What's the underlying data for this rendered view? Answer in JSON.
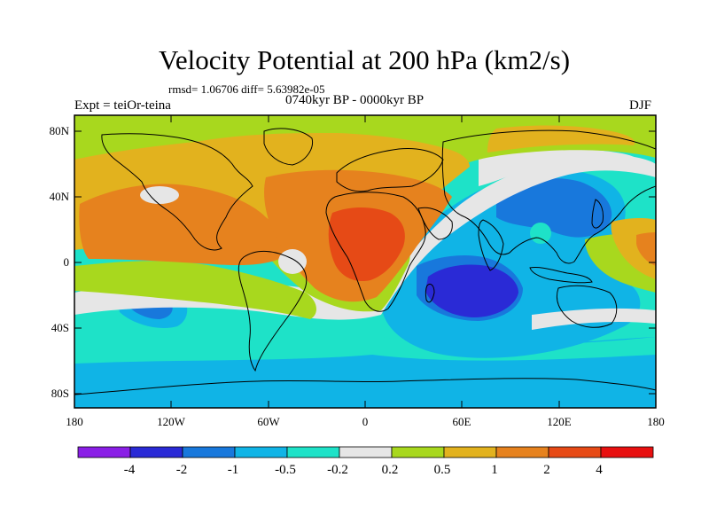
{
  "title": "Velocity Potential at 200 hPa (km2/s)",
  "stats": "rmsd= 1.06706 diff= 5.63982e-05",
  "experiment": "Expt = teiOr-teina",
  "period": "0740kyr BP - 0000kyr BP",
  "season": "DJF",
  "lat_ticks": [
    "80N",
    "40N",
    "0",
    "40S",
    "80S"
  ],
  "lon_ticks": [
    "180",
    "120W",
    "60W",
    "0",
    "60E",
    "120E",
    "180"
  ],
  "colorbar": {
    "colors": [
      "#8a1fe6",
      "#2a2ad6",
      "#1878dc",
      "#10b4e6",
      "#1ee2c8",
      "#e6e6e6",
      "#a8d81e",
      "#e2b21e",
      "#e6821e",
      "#e64a16",
      "#e81010"
    ],
    "labels": [
      "-4",
      "-2",
      "-1",
      "-0.5",
      "-0.2",
      "0.2",
      "0.5",
      "1",
      "2",
      "4"
    ]
  },
  "palette": {
    "ocean_bg": "#10b4e6",
    "outline": "#000000"
  }
}
